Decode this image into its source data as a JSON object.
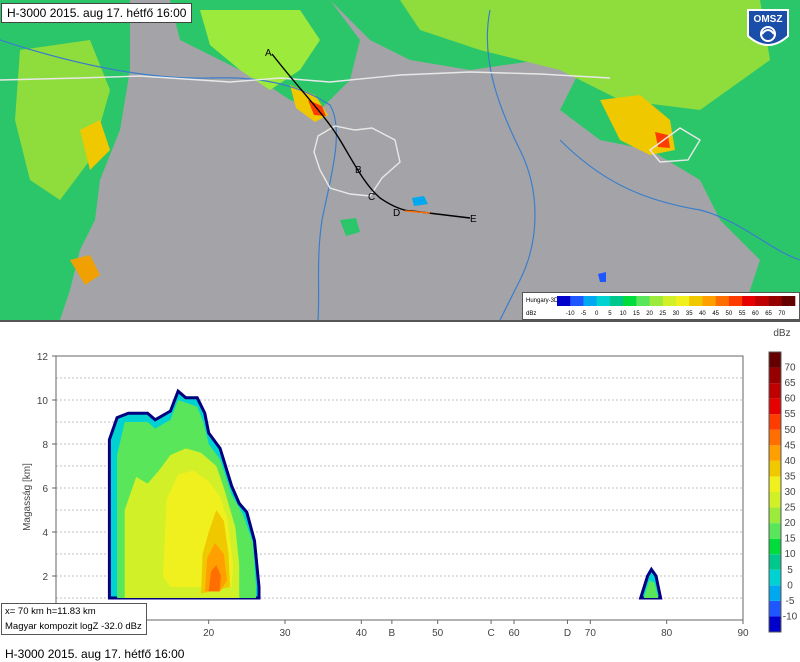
{
  "map": {
    "title": "H-3000 2015. aug 17. hétfő 16:00",
    "logo_text": "OMSZ",
    "path_points": [
      {
        "label": "A"
      },
      {
        "label": "B"
      },
      {
        "label": "C"
      },
      {
        "label": "D"
      },
      {
        "label": "E"
      }
    ],
    "legend": {
      "title": "Hungary-3D",
      "unit": "dBz",
      "ticks": [
        "-10",
        "-5",
        "0",
        "5",
        "10",
        "15",
        "20",
        "25",
        "30",
        "35",
        "40",
        "45",
        "50",
        "55",
        "60",
        "65",
        "70"
      ]
    }
  },
  "section": {
    "title": "H-3000 2015. aug 17. hétfő 16:00",
    "readout": {
      "line1": "x=  70 km h=11.83 km",
      "line2": "Magyar kompozit logZ  -32.0 dBz"
    }
  },
  "colors": {
    "map_background": "#a4a4a8",
    "dbz_scale": [
      "#000080",
      "#0000cd",
      "#1e56ff",
      "#00a8f0",
      "#00d2d2",
      "#00c88c",
      "#00dc3c",
      "#5ae65a",
      "#9bea3c",
      "#d2f028",
      "#f0f01e",
      "#f0c800",
      "#ffa000",
      "#ff6e00",
      "#ff3c00",
      "#e60000",
      "#be0000",
      "#960000",
      "#640000"
    ]
  },
  "chart_data": {
    "type": "heatmap",
    "title": "",
    "xlabel": "",
    "ylabel": "Magasság [km]",
    "xlim": [
      0,
      90
    ],
    "ylim": [
      0,
      12
    ],
    "x_ticks": [
      "20",
      "30",
      "40",
      "50",
      "60",
      "70",
      "80",
      "90"
    ],
    "y_ticks": [
      "2",
      "4",
      "6",
      "8",
      "10",
      "12"
    ],
    "section_points": [
      {
        "label": "B",
        "x": 44
      },
      {
        "label": "C",
        "x": 57
      },
      {
        "label": "D",
        "x": 67
      }
    ],
    "colorbar": {
      "unit": "dBz",
      "ticks": [
        "70",
        "65",
        "60",
        "55",
        "50",
        "45",
        "40",
        "35",
        "30",
        "25",
        "20",
        "15",
        "10",
        "5",
        "0",
        "-5",
        "-10"
      ]
    },
    "echo_regions": [
      {
        "dbz": 5,
        "outline": [
          [
            7,
            1
          ],
          [
            7,
            8.2
          ],
          [
            8,
            9.2
          ],
          [
            9.5,
            9.4
          ],
          [
            12,
            9.4
          ],
          [
            13,
            9.1
          ],
          [
            15,
            9.5
          ],
          [
            16,
            10.4
          ],
          [
            17,
            10.1
          ],
          [
            18.5,
            10.1
          ],
          [
            19.5,
            9.4
          ],
          [
            20,
            8.5
          ],
          [
            21.5,
            7.8
          ],
          [
            23,
            6.1
          ],
          [
            24,
            5.3
          ],
          [
            25,
            4.9
          ],
          [
            26,
            3.6
          ],
          [
            26.6,
            1.5
          ],
          [
            26.6,
            1
          ]
        ]
      },
      {
        "dbz": 20,
        "outline": [
          [
            8,
            1
          ],
          [
            8,
            7.5
          ],
          [
            9,
            9
          ],
          [
            12,
            9
          ],
          [
            13,
            8.7
          ],
          [
            15,
            9.1
          ],
          [
            16,
            10
          ],
          [
            18.5,
            9.7
          ],
          [
            19.3,
            9
          ],
          [
            20,
            8
          ],
          [
            21.5,
            7.3
          ],
          [
            23,
            5.7
          ],
          [
            24.5,
            4.8
          ],
          [
            25.8,
            3.5
          ],
          [
            26.2,
            1.5
          ],
          [
            26.2,
            1
          ]
        ]
      },
      {
        "dbz": 30,
        "outline": [
          [
            9,
            1
          ],
          [
            9,
            5
          ],
          [
            10.5,
            6.5
          ],
          [
            12,
            6.2
          ],
          [
            13.5,
            6.8
          ],
          [
            15,
            7.5
          ],
          [
            17,
            7.8
          ],
          [
            19,
            7.6
          ],
          [
            21,
            7
          ],
          [
            22,
            6
          ],
          [
            23.5,
            4.2
          ],
          [
            24,
            2.5
          ],
          [
            24,
            1
          ]
        ]
      },
      {
        "dbz": 35,
        "outline": [
          [
            14,
            2
          ],
          [
            14.5,
            5.5
          ],
          [
            16,
            6.6
          ],
          [
            18,
            6.8
          ],
          [
            20,
            6.3
          ],
          [
            21.5,
            5.6
          ],
          [
            22.5,
            4.5
          ],
          [
            23.2,
            2.5
          ],
          [
            23,
            1.5
          ],
          [
            15,
            1.5
          ]
        ]
      },
      {
        "dbz": 40,
        "outline": [
          [
            19,
            1.2
          ],
          [
            19.2,
            3
          ],
          [
            20,
            4
          ],
          [
            21,
            5
          ],
          [
            22,
            4.5
          ],
          [
            22.6,
            3
          ],
          [
            22.8,
            1.5
          ]
        ]
      },
      {
        "dbz": 45,
        "outline": [
          [
            19.5,
            1.3
          ],
          [
            19.8,
            2.8
          ],
          [
            20.8,
            3.5
          ],
          [
            22,
            3
          ],
          [
            22.4,
            1.8
          ],
          [
            21.5,
            1.3
          ]
        ]
      },
      {
        "dbz": 50,
        "outline": [
          [
            20,
            1.3
          ],
          [
            20.3,
            2.2
          ],
          [
            21,
            2.5
          ],
          [
            21.6,
            2
          ],
          [
            21.4,
            1.3
          ]
        ]
      },
      {
        "dbz": 5,
        "outline": [
          [
            76.6,
            1
          ],
          [
            77.5,
            2
          ],
          [
            78,
            2.3
          ],
          [
            78.6,
            2
          ],
          [
            79.2,
            1
          ]
        ]
      },
      {
        "dbz": 20,
        "outline": [
          [
            77,
            1
          ],
          [
            77.7,
            1.8
          ],
          [
            78.4,
            1.7
          ],
          [
            78.9,
            1
          ]
        ]
      }
    ]
  }
}
